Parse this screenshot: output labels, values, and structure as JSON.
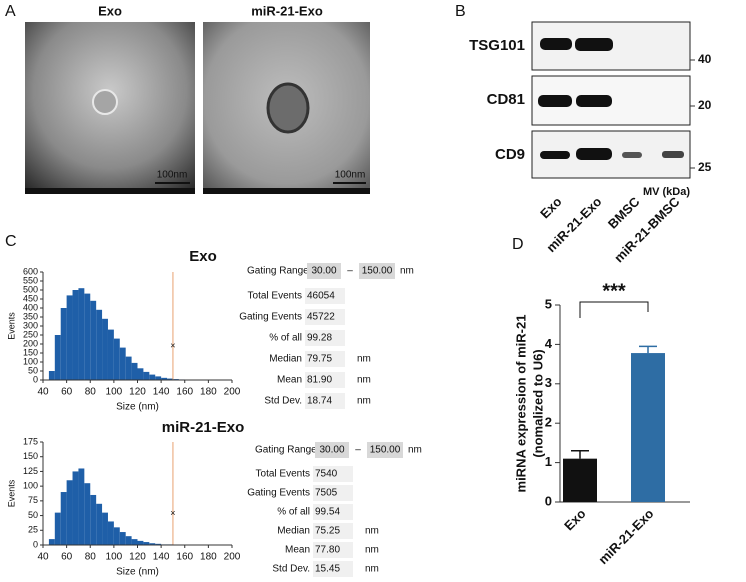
{
  "panels": {
    "a": "A",
    "b": "B",
    "c": "C",
    "d": "D"
  },
  "tem": [
    {
      "title": "Exo",
      "scale": "100nm"
    },
    {
      "title": "miR-21-Exo",
      "scale": "100nm"
    }
  ],
  "blot": {
    "proteins": [
      {
        "name": "TSG101",
        "marker": "40"
      },
      {
        "name": "CD81",
        "marker": "20"
      },
      {
        "name": "CD9",
        "marker": "25"
      }
    ],
    "marker_unit": "MV (kDa)",
    "lanes": [
      "Exo",
      "miR-21-Exo",
      "BMSC",
      "miR-21-BMSC"
    ]
  },
  "nta": [
    {
      "gating": {
        "label": "Gating Range",
        "low": "30.00",
        "sep": "–",
        "high": "150.00",
        "unit": "nm"
      },
      "rows": [
        [
          "Total  Events",
          "46054"
        ],
        [
          "Gating Events",
          "45722"
        ],
        [
          "% of all",
          "99.28"
        ],
        [
          "Median",
          "79.75",
          "nm"
        ],
        [
          "Mean",
          "81.90",
          "nm"
        ],
        [
          "Std Dev.",
          "18.74",
          "nm"
        ]
      ]
    },
    {
      "gating": {
        "label": "Gating Range",
        "low": "30.00",
        "sep": "–",
        "high": "150.00",
        "unit": "nm"
      },
      "rows": [
        [
          "Total  Events",
          "7540"
        ],
        [
          "Gating Events",
          "7505"
        ],
        [
          "% of all",
          "99.54"
        ],
        [
          "Median",
          "75.25",
          "nm"
        ],
        [
          "Mean",
          "77.80",
          "nm"
        ],
        [
          "Std Dev.",
          "15.45",
          "nm"
        ]
      ]
    }
  ],
  "chart_data": [
    {
      "type": "histogram",
      "title": "Exo",
      "x_label": "Size (nm)",
      "y_label": "Events",
      "color": "#1f5fa8",
      "bins": [
        40,
        45,
        50,
        55,
        60,
        65,
        70,
        75,
        80,
        85,
        90,
        95,
        100,
        105,
        110,
        115,
        120,
        125,
        130,
        135,
        140,
        145,
        150,
        155,
        160,
        165,
        170,
        175,
        180,
        185,
        190,
        195,
        200
      ],
      "counts": [
        0,
        50,
        250,
        400,
        470,
        500,
        510,
        480,
        440,
        390,
        340,
        280,
        230,
        180,
        130,
        95,
        65,
        45,
        30,
        20,
        12,
        8,
        5,
        3,
        2,
        1,
        1,
        1,
        0,
        0,
        0,
        0
      ],
      "xlim": [
        40,
        200
      ],
      "xticks": [
        40,
        60,
        80,
        100,
        120,
        140,
        160,
        180,
        200
      ],
      "ylim": [
        0,
        600
      ],
      "yticks": [
        0,
        50,
        100,
        150,
        200,
        250,
        300,
        350,
        400,
        450,
        500,
        550,
        600
      ]
    },
    {
      "type": "histogram",
      "title": "miR-21-Exo",
      "x_label": "Size (nm)",
      "y_label": "Events",
      "color": "#1f5fa8",
      "bins": [
        40,
        45,
        50,
        55,
        60,
        65,
        70,
        75,
        80,
        85,
        90,
        95,
        100,
        105,
        110,
        115,
        120,
        125,
        130,
        135,
        140,
        145,
        150,
        155,
        160,
        165,
        170,
        175,
        180,
        185,
        190,
        195,
        200
      ],
      "counts": [
        0,
        10,
        55,
        90,
        110,
        125,
        130,
        105,
        85,
        70,
        55,
        40,
        30,
        22,
        15,
        10,
        7,
        5,
        3,
        2,
        1,
        1,
        0,
        0,
        0,
        0,
        0,
        0,
        0,
        0,
        0,
        0
      ],
      "xlim": [
        40,
        200
      ],
      "xticks": [
        40,
        60,
        80,
        100,
        120,
        140,
        160,
        180,
        200
      ],
      "ylim": [
        0,
        175
      ],
      "yticks": [
        0,
        25,
        50,
        75,
        100,
        125,
        150,
        175
      ]
    },
    {
      "type": "bar",
      "y_label": [
        "miRNA expression of miR-21",
        "(nomalized to U6)"
      ],
      "annotation": "***",
      "categories": [
        "Exo",
        "miR-21-Exo"
      ],
      "values": [
        1.1,
        3.78
      ],
      "errors": [
        0.2,
        0.17
      ],
      "colors": [
        "#111111",
        "#2e6da4"
      ],
      "ylim": [
        0,
        5
      ],
      "yticks": [
        0,
        1,
        2,
        3,
        4,
        5
      ]
    }
  ]
}
